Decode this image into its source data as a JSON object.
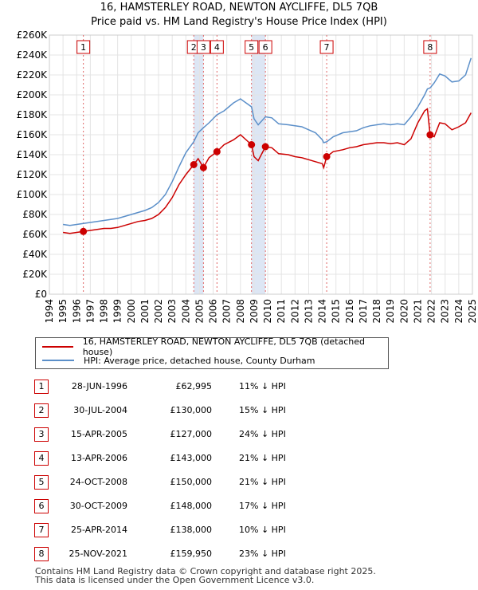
{
  "title_line1": "16, HAMSTERLEY ROAD, NEWTON AYCLIFFE, DL5 7QB",
  "title_line2": "Price paid vs. HM Land Registry's House Price Index (HPI)",
  "chart_data": {
    "type": "line",
    "title": "Price paid vs. HM Land Registry's House Price Index (HPI)",
    "xlabel": "",
    "ylabel": "",
    "xlim": [
      1994,
      2025
    ],
    "ylim": [
      0,
      260000
    ],
    "yticks": [
      0,
      20000,
      40000,
      60000,
      80000,
      100000,
      120000,
      140000,
      160000,
      180000,
      200000,
      220000,
      240000,
      260000
    ],
    "ytick_labels": [
      "£0",
      "£20K",
      "£40K",
      "£60K",
      "£80K",
      "£100K",
      "£120K",
      "£140K",
      "£160K",
      "£180K",
      "£200K",
      "£220K",
      "£240K",
      "£260K"
    ],
    "xticks": [
      1994,
      1995,
      1996,
      1997,
      1998,
      1999,
      2000,
      2001,
      2002,
      2003,
      2004,
      2005,
      2006,
      2007,
      2008,
      2009,
      2010,
      2011,
      2012,
      2013,
      2014,
      2015,
      2016,
      2017,
      2018,
      2019,
      2020,
      2021,
      2022,
      2023,
      2024,
      2025
    ],
    "grid": true,
    "series": [
      {
        "name": "16, HAMSTERLEY ROAD, NEWTON AYCLIFFE, DL5 7QB (detached house)",
        "color": "#cc0000",
        "points": [
          [
            1995.0,
            62000
          ],
          [
            1995.5,
            61000
          ],
          [
            1996.0,
            62000
          ],
          [
            1996.49,
            62995
          ],
          [
            1997.0,
            64000
          ],
          [
            1997.5,
            65000
          ],
          [
            1998.0,
            66000
          ],
          [
            1998.5,
            66000
          ],
          [
            1999.0,
            67000
          ],
          [
            1999.5,
            69000
          ],
          [
            2000.0,
            71000
          ],
          [
            2000.5,
            73000
          ],
          [
            2001.0,
            74000
          ],
          [
            2001.5,
            76000
          ],
          [
            2002.0,
            80000
          ],
          [
            2002.5,
            87000
          ],
          [
            2003.0,
            97000
          ],
          [
            2003.5,
            110000
          ],
          [
            2004.0,
            120000
          ],
          [
            2004.58,
            130000
          ],
          [
            2004.9,
            136000
          ],
          [
            2005.29,
            127000
          ],
          [
            2005.7,
            137000
          ],
          [
            2006.28,
            143000
          ],
          [
            2006.8,
            150000
          ],
          [
            2007.5,
            155000
          ],
          [
            2008.0,
            160000
          ],
          [
            2008.81,
            150000
          ],
          [
            2009.0,
            138000
          ],
          [
            2009.3,
            134000
          ],
          [
            2009.83,
            148000
          ],
          [
            2010.3,
            147000
          ],
          [
            2010.8,
            141000
          ],
          [
            2011.5,
            140000
          ],
          [
            2012.0,
            138000
          ],
          [
            2012.5,
            137000
          ],
          [
            2013.0,
            135000
          ],
          [
            2013.5,
            133000
          ],
          [
            2014.0,
            131000
          ],
          [
            2014.1,
            127000
          ],
          [
            2014.32,
            138000
          ],
          [
            2014.8,
            143000
          ],
          [
            2015.5,
            145000
          ],
          [
            2016.0,
            147000
          ],
          [
            2016.5,
            148000
          ],
          [
            2017.0,
            150000
          ],
          [
            2017.5,
            151000
          ],
          [
            2018.0,
            152000
          ],
          [
            2018.5,
            152000
          ],
          [
            2019.0,
            151000
          ],
          [
            2019.5,
            152000
          ],
          [
            2020.0,
            150000
          ],
          [
            2020.5,
            156000
          ],
          [
            2021.0,
            172000
          ],
          [
            2021.5,
            184000
          ],
          [
            2021.7,
            186000
          ],
          [
            2021.9,
            159950
          ],
          [
            2022.2,
            158000
          ],
          [
            2022.6,
            172000
          ],
          [
            2023.0,
            171000
          ],
          [
            2023.5,
            165000
          ],
          [
            2024.0,
            168000
          ],
          [
            2024.5,
            172000
          ],
          [
            2024.9,
            182000
          ]
        ]
      },
      {
        "name": "HPI: Average price, detached house, County Durham",
        "color": "#5b8fc9",
        "points": [
          [
            1995.0,
            70000
          ],
          [
            1995.5,
            69000
          ],
          [
            1996.0,
            70000
          ],
          [
            1996.49,
            71000
          ],
          [
            1997.0,
            72000
          ],
          [
            1997.5,
            73000
          ],
          [
            1998.0,
            74000
          ],
          [
            1998.5,
            75000
          ],
          [
            1999.0,
            76000
          ],
          [
            1999.5,
            78000
          ],
          [
            2000.0,
            80000
          ],
          [
            2000.5,
            82000
          ],
          [
            2001.0,
            84000
          ],
          [
            2001.5,
            87000
          ],
          [
            2002.0,
            92000
          ],
          [
            2002.5,
            100000
          ],
          [
            2003.0,
            113000
          ],
          [
            2003.5,
            128000
          ],
          [
            2004.0,
            142000
          ],
          [
            2004.58,
            153000
          ],
          [
            2004.9,
            162000
          ],
          [
            2005.29,
            167000
          ],
          [
            2005.7,
            172000
          ],
          [
            2006.28,
            180000
          ],
          [
            2006.8,
            184000
          ],
          [
            2007.5,
            192000
          ],
          [
            2008.0,
            196000
          ],
          [
            2008.81,
            188000
          ],
          [
            2009.0,
            176000
          ],
          [
            2009.3,
            170000
          ],
          [
            2009.83,
            178000
          ],
          [
            2010.3,
            177000
          ],
          [
            2010.8,
            171000
          ],
          [
            2011.5,
            170000
          ],
          [
            2012.0,
            169000
          ],
          [
            2012.5,
            168000
          ],
          [
            2013.0,
            165000
          ],
          [
            2013.5,
            162000
          ],
          [
            2014.0,
            155000
          ],
          [
            2014.1,
            152000
          ],
          [
            2014.32,
            153000
          ],
          [
            2014.8,
            158000
          ],
          [
            2015.5,
            162000
          ],
          [
            2016.0,
            163000
          ],
          [
            2016.5,
            164000
          ],
          [
            2017.0,
            167000
          ],
          [
            2017.5,
            169000
          ],
          [
            2018.0,
            170000
          ],
          [
            2018.5,
            171000
          ],
          [
            2019.0,
            170000
          ],
          [
            2019.5,
            171000
          ],
          [
            2020.0,
            170000
          ],
          [
            2020.5,
            178000
          ],
          [
            2021.0,
            188000
          ],
          [
            2021.5,
            200000
          ],
          [
            2021.7,
            206000
          ],
          [
            2021.9,
            207000
          ],
          [
            2022.2,
            212000
          ],
          [
            2022.6,
            221000
          ],
          [
            2023.0,
            219000
          ],
          [
            2023.5,
            213000
          ],
          [
            2024.0,
            214000
          ],
          [
            2024.5,
            220000
          ],
          [
            2024.9,
            237000
          ]
        ]
      }
    ],
    "sales": [
      {
        "id": "1",
        "t": 1996.49,
        "price": 62995
      },
      {
        "id": "2",
        "t": 2004.58,
        "price": 130000
      },
      {
        "id": "3",
        "t": 2005.29,
        "price": 127000
      },
      {
        "id": "4",
        "t": 2006.28,
        "price": 143000
      },
      {
        "id": "5",
        "t": 2008.81,
        "price": 150000
      },
      {
        "id": "6",
        "t": 2009.83,
        "price": 148000
      },
      {
        "id": "7",
        "t": 2014.32,
        "price": 138000
      },
      {
        "id": "8",
        "t": 2021.9,
        "price": 159950
      }
    ],
    "shaded_bands": [
      {
        "from": 2004.58,
        "to": 2005.29
      },
      {
        "from": 2008.81,
        "to": 2009.83
      }
    ]
  },
  "legend": {
    "property_label": "16, HAMSTERLEY ROAD, NEWTON AYCLIFFE, DL5 7QB (detached house)",
    "hpi_label": "HPI: Average price, detached house, County Durham",
    "property_color": "#cc0000",
    "hpi_color": "#5b8fc9"
  },
  "sales_table": [
    {
      "id": "1",
      "date": "28-JUN-1996",
      "price": "£62,995",
      "delta": "11% ↓ HPI"
    },
    {
      "id": "2",
      "date": "30-JUL-2004",
      "price": "£130,000",
      "delta": "15% ↓ HPI"
    },
    {
      "id": "3",
      "date": "15-APR-2005",
      "price": "£127,000",
      "delta": "24% ↓ HPI"
    },
    {
      "id": "4",
      "date": "13-APR-2006",
      "price": "£143,000",
      "delta": "21% ↓ HPI"
    },
    {
      "id": "5",
      "date": "24-OCT-2008",
      "price": "£150,000",
      "delta": "21% ↓ HPI"
    },
    {
      "id": "6",
      "date": "30-OCT-2009",
      "price": "£148,000",
      "delta": "17% ↓ HPI"
    },
    {
      "id": "7",
      "date": "25-APR-2014",
      "price": "£138,000",
      "delta": "10% ↓ HPI"
    },
    {
      "id": "8",
      "date": "25-NOV-2021",
      "price": "£159,950",
      "delta": "23% ↓ HPI"
    }
  ],
  "footer_line1": "Contains HM Land Registry data © Crown copyright and database right 2025.",
  "footer_line2": "This data is licensed under the Open Government Licence v3.0."
}
